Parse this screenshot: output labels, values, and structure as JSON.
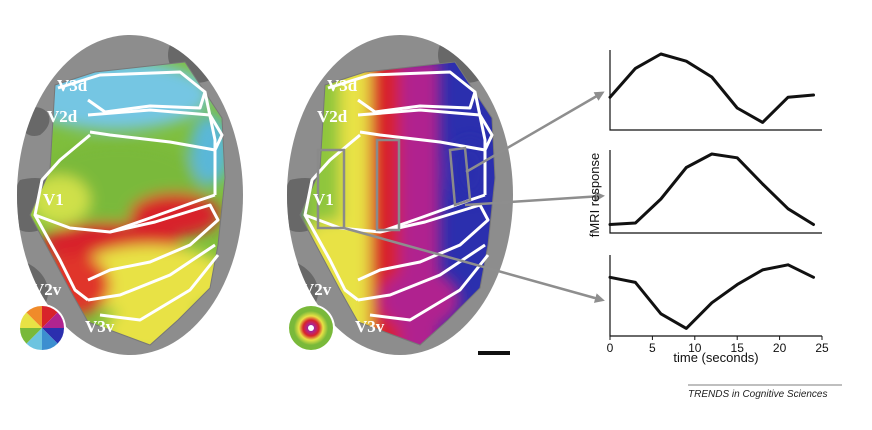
{
  "labels": {
    "v3d": "V3d",
    "v2d": "V2d",
    "v1": "V1",
    "v2v": "V2v",
    "v3v": "V3v"
  },
  "colors": {
    "cortex_gray": "#8d8d8d",
    "polar_red": "#d8232a",
    "polar_yellow": "#e8e245",
    "polar_green": "#79b93a",
    "polar_cyan": "#6cc4e0",
    "polar_blue": "#2b2fae",
    "polar_magenta": "#b0248f",
    "boundary": "#ffffff",
    "roi_box": "#8a8a8a",
    "arrow": "#8e8e8e",
    "trace": "#111111"
  },
  "chart_data": {
    "type": "line",
    "ylabel": "fMRI response",
    "xlabel": "time (seconds)",
    "xlim": [
      0,
      25
    ],
    "xticks": [
      0,
      5,
      10,
      15,
      20,
      25
    ],
    "series": [
      {
        "x": [
          0,
          3,
          6,
          9,
          12,
          15,
          18,
          21,
          24
        ],
        "values": [
          0.4,
          0.8,
          1.0,
          0.9,
          0.68,
          0.25,
          0.05,
          0.4,
          0.43
        ]
      },
      {
        "x": [
          0,
          3,
          6,
          9,
          12,
          15,
          18,
          21,
          24
        ],
        "values": [
          0.06,
          0.08,
          0.4,
          0.82,
          1.0,
          0.95,
          0.6,
          0.27,
          0.06
        ]
      },
      {
        "x": [
          0,
          3,
          6,
          9,
          12,
          15,
          18,
          21,
          24
        ],
        "values": [
          0.75,
          0.68,
          0.25,
          0.05,
          0.4,
          0.65,
          0.85,
          0.92,
          0.75
        ]
      }
    ]
  },
  "credit": "TRENDS in Cognitive Sciences"
}
